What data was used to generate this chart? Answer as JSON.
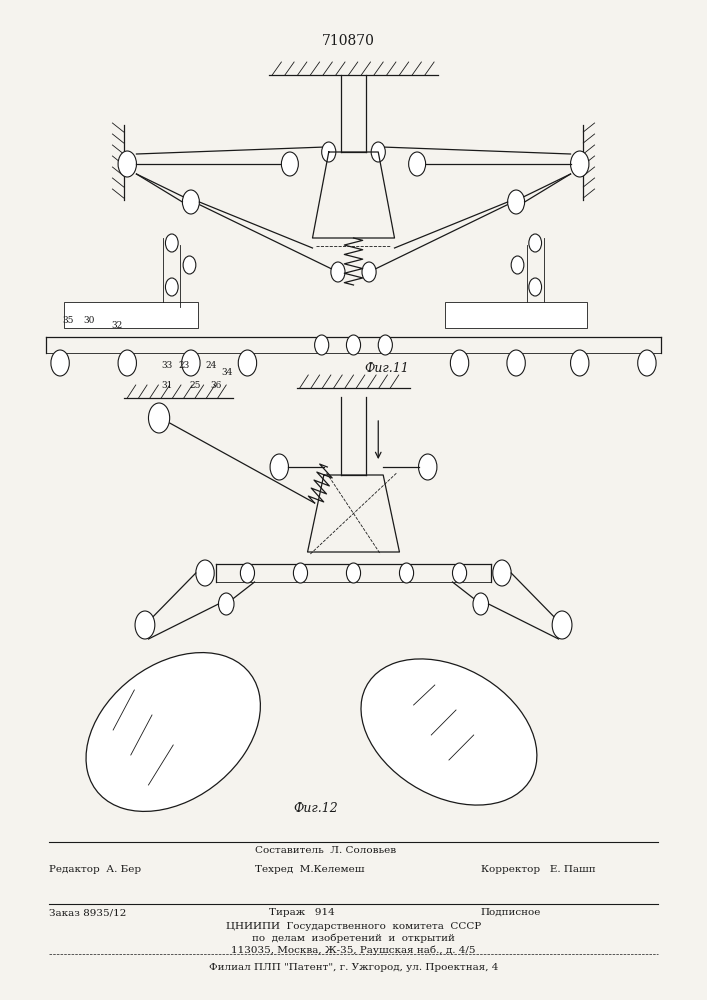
{
  "patent_number": "710870",
  "fig11_label": "Фиг.11",
  "fig12_label": "Фиг.12",
  "footer_line1_left": "Редактор  А. Бер",
  "footer_line1_center_top": "Составитель  Л. Соловьев",
  "footer_line1_center": "Техред  М.Келемеш",
  "footer_line1_right": "Корректор   Е. Пашп",
  "footer_line2_left": "Заказ 8935/12",
  "footer_line2_center": "Тираж   914",
  "footer_line2_right": "Подписное",
  "footer_line3": "ЦНИИПИ  Государственного  комитета  СССР",
  "footer_line4": "по  делам  изобретений  и  открытий",
  "footer_line5": "113035, Москва, Ж-35, Раушская наб., д. 4/5",
  "footer_line6": "Филиал ПЛП \"Патент\", г. Ужгород, ул. Проектная, 4",
  "bg_color": "#f5f3ee",
  "line_color": "#1a1a1a"
}
